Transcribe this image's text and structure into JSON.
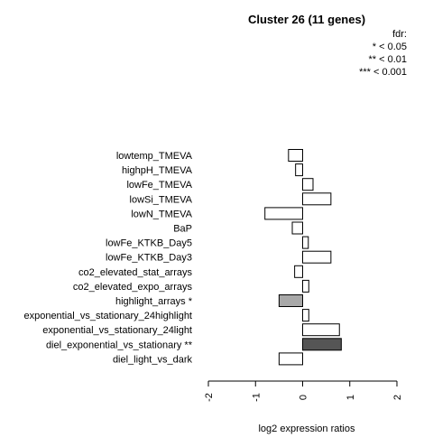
{
  "chart_data": {
    "type": "bar",
    "orientation": "horizontal",
    "title": "Cluster 26 (11 genes)",
    "xlabel": "log2 expression ratios",
    "ylabel": "",
    "xlim": [
      -2,
      2
    ],
    "xticks": [
      "-2",
      "-1",
      "0",
      "1",
      "2"
    ],
    "grid": false,
    "legend": {
      "placement": "top-right",
      "title": "fdr:",
      "entries": [
        "* < 0.05",
        "** < 0.01",
        "*** < 0.001"
      ]
    },
    "categories": [
      "lowtemp_TMEVA",
      "highpH_TMEVA",
      "lowFe_TMEVA",
      "lowSi_TMEVA",
      "lowN_TMEVA",
      "BaP",
      "lowFe_KTKB_Day5",
      "lowFe_KTKB_Day3",
      "co2_elevated_stat_arrays",
      "co2_elevated_expo_arrays",
      "highlight_arrays *",
      "exponential_vs_stationary_24highlight",
      "exponential_vs_stationary_24light",
      "diel_exponential_vs_stationary **",
      "diel_light_vs_dark"
    ],
    "values": [
      -0.3,
      -0.15,
      0.22,
      0.6,
      -0.8,
      -0.22,
      0.12,
      0.6,
      -0.17,
      0.13,
      -0.5,
      0.13,
      0.78,
      0.82,
      -0.5
    ],
    "significance": [
      "",
      "",
      "",
      "",
      "",
      "",
      "",
      "",
      "",
      "",
      "*",
      "",
      "",
      "**",
      ""
    ],
    "colors": {
      "none": "#ffffff",
      "*": "#a8a8a8",
      "**": "#555555",
      "***": "#222222",
      "stroke": "#000000"
    }
  }
}
